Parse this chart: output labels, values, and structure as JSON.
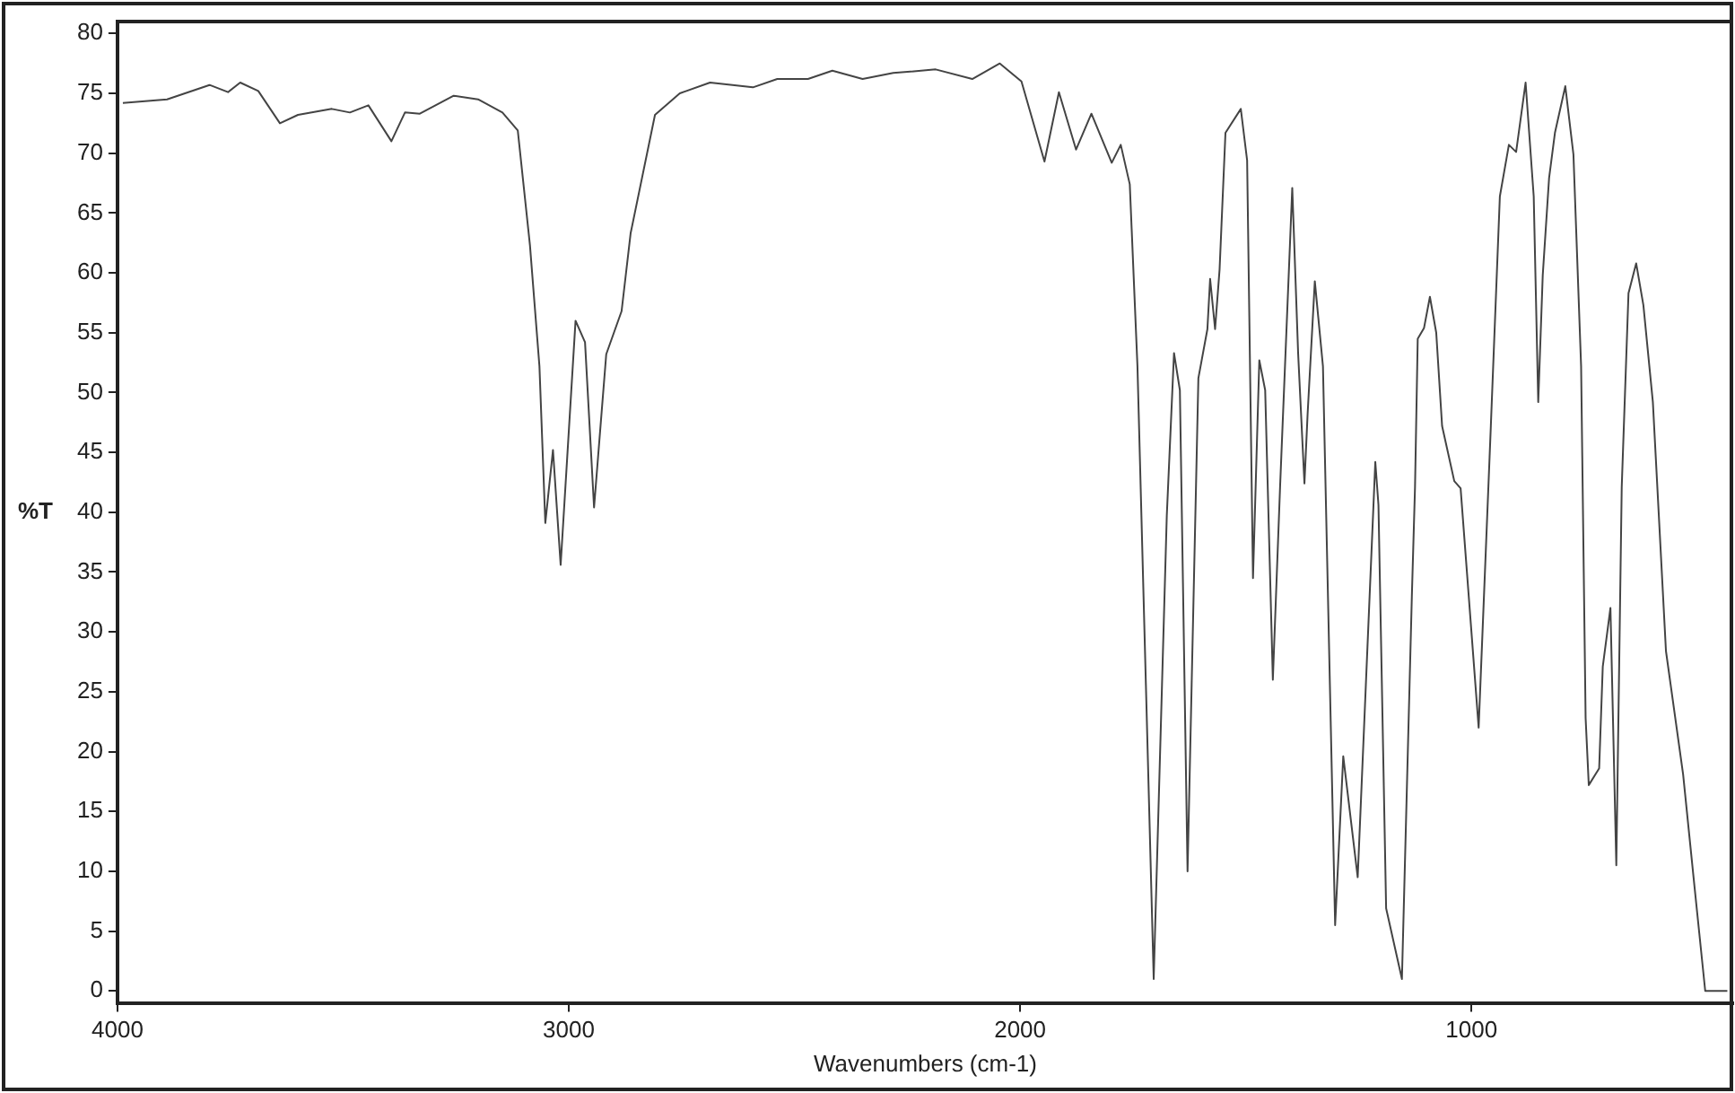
{
  "chart_data": {
    "type": "line",
    "xlabel": "Wavenumbers (cm-1)",
    "ylabel": "%T",
    "xlim": [
      4000,
      420
    ],
    "xticks": [
      4000,
      3000,
      2000,
      1000
    ],
    "ylim": [
      -1,
      81
    ],
    "yticks": [
      0,
      5,
      10,
      15,
      20,
      25,
      30,
      35,
      40,
      45,
      50,
      55,
      60,
      65,
      70,
      75,
      80
    ],
    "grid": false,
    "legend": false,
    "marker": "none",
    "line_style": "solid",
    "series": [
      {
        "color": "#444444",
        "x": [
          3988,
          3890,
          3796,
          3755,
          3728,
          3688,
          3640,
          3600,
          3525,
          3485,
          3444,
          3393,
          3363,
          3330,
          3255,
          3201,
          3147,
          3113,
          3086,
          3065,
          3052,
          3035,
          3018,
          2985,
          2964,
          2944,
          2917,
          2883,
          2863,
          2809,
          2754,
          2687,
          2592,
          2538,
          2470,
          2416,
          2349,
          2281,
          2187,
          2106,
          2045,
          1997,
          1946,
          1914,
          1876,
          1842,
          1797,
          1777,
          1757,
          1740,
          1704,
          1675,
          1659,
          1646,
          1629,
          1605,
          1585,
          1579,
          1568,
          1558,
          1545,
          1511,
          1497,
          1484,
          1470,
          1457,
          1440,
          1424,
          1397,
          1384,
          1370,
          1363,
          1347,
          1329,
          1302,
          1284,
          1252,
          1213,
          1206,
          1189,
          1154,
          1132,
          1125,
          1119,
          1105,
          1092,
          1078,
          1065,
          1038,
          1024,
          984,
          957,
          937,
          917,
          901,
          880,
          862,
          852,
          842,
          828,
          815,
          792,
          774,
          757,
          747,
          740,
          717,
          709,
          692,
          679,
          667,
          652,
          635,
          619,
          598,
          569,
          531,
          506,
          482,
          433
        ],
        "values": [
          74.2,
          74.5,
          75.7,
          75.1,
          75.9,
          75.2,
          72.5,
          73.2,
          73.7,
          73.4,
          74.0,
          71.0,
          73.4,
          73.3,
          74.8,
          74.5,
          73.4,
          71.9,
          62.3,
          52.2,
          39.1,
          45.2,
          35.6,
          56.0,
          54.2,
          40.4,
          53.2,
          56.8,
          63.3,
          73.2,
          75.0,
          75.9,
          75.5,
          76.2,
          76.2,
          76.9,
          76.2,
          76.7,
          77.0,
          76.2,
          77.5,
          76.0,
          69.3,
          75.1,
          70.3,
          73.3,
          69.2,
          70.7,
          67.4,
          52.2,
          1,
          39.7,
          53.3,
          50.2,
          10,
          51.2,
          55.3,
          59.5,
          55.3,
          60.3,
          71.7,
          73.7,
          69.4,
          34.5,
          52.7,
          50.2,
          26,
          42.1,
          67.1,
          53.3,
          42.4,
          48.2,
          59.3,
          52.2,
          5.5,
          19.6,
          9.5,
          44.2,
          40.6,
          6.9,
          1,
          33,
          42.1,
          54.5,
          55.4,
          58.0,
          55.0,
          47.2,
          42.6,
          42.0,
          22,
          47.2,
          66.4,
          70.7,
          70.1,
          75.9,
          66.4,
          49.2,
          59.8,
          67.9,
          71.7,
          75.6,
          69.9,
          52.2,
          22.8,
          17.2,
          18.6,
          27.1,
          32,
          10.5,
          42.1,
          58.3,
          60.8,
          57.3,
          49.2,
          28.4,
          18.1,
          8.8,
          0,
          0
        ]
      }
    ]
  }
}
